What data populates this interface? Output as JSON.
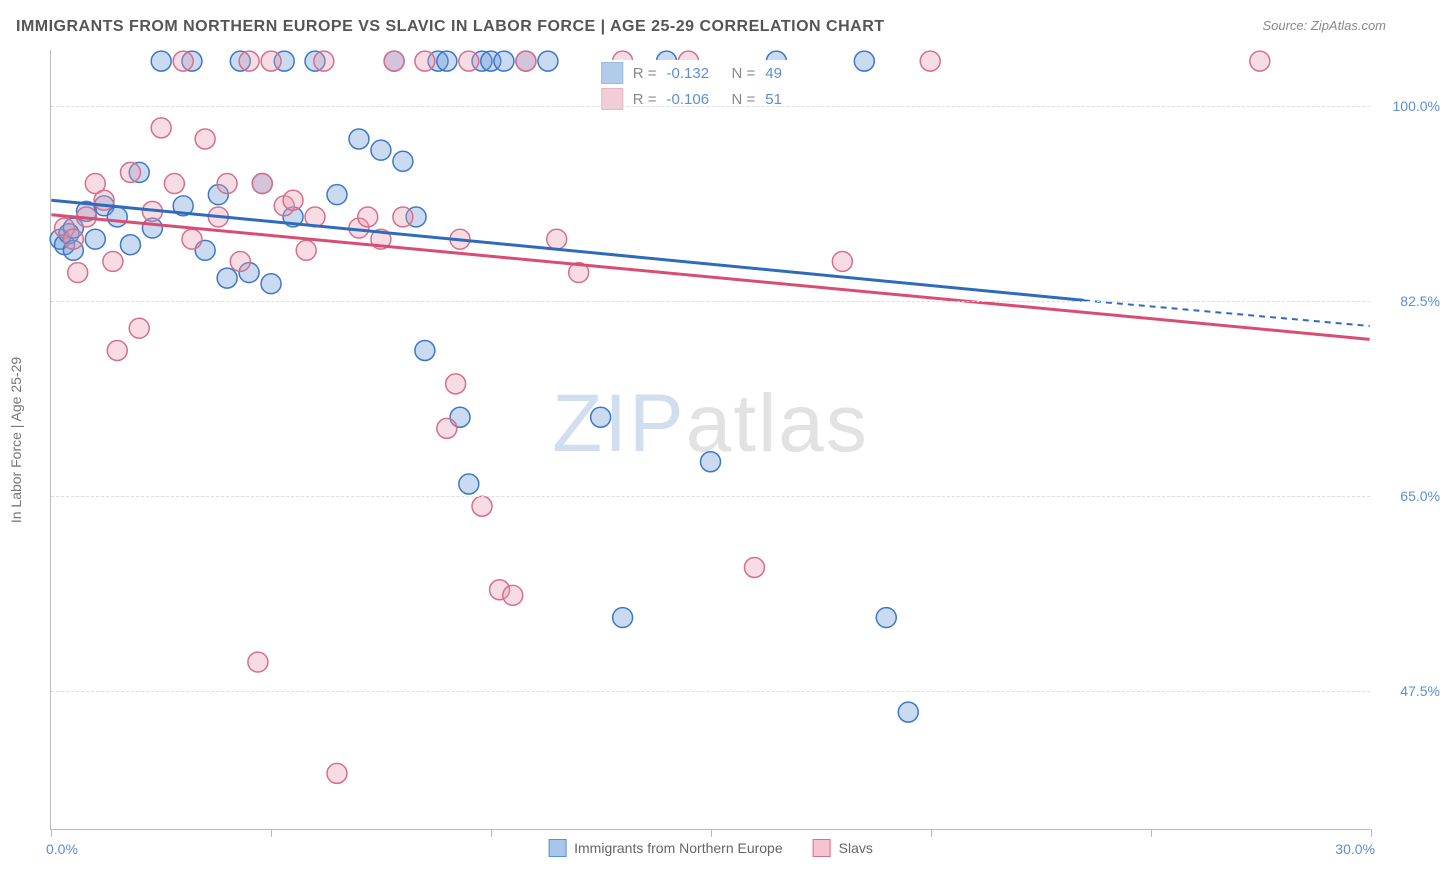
{
  "title": "IMMIGRANTS FROM NORTHERN EUROPE VS SLAVIC IN LABOR FORCE | AGE 25-29 CORRELATION CHART",
  "source": "Source: ZipAtlas.com",
  "watermark": {
    "zip": "ZIP",
    "atlas": "atlas"
  },
  "chart": {
    "type": "scatter",
    "background_color": "#ffffff",
    "grid_color": "#dddddd",
    "axis_color": "#bbbbbb",
    "tick_label_color": "#5b8fd6",
    "axis_label_color": "#777777",
    "xlim": [
      0,
      30
    ],
    "ylim": [
      35,
      105
    ],
    "xticks_minor": [
      0,
      5,
      10,
      15,
      20,
      25,
      30
    ],
    "xlabel_min": "0.0%",
    "xlabel_max": "30.0%",
    "ytick_positions": [
      47.5,
      65.0,
      82.5,
      100.0
    ],
    "ytick_labels": [
      "47.5%",
      "65.0%",
      "82.5%",
      "100.0%"
    ],
    "yaxis_label": "In Labor Force | Age 25-29",
    "marker_radius": 10,
    "marker_fill_opacity": 0.35,
    "marker_stroke_width": 1.5,
    "regression_line_width": 3,
    "series": [
      {
        "name": "Immigrants from Northern Europe",
        "color": "#6699d8",
        "color_stroke": "#3d78c7",
        "line_color": "#2e6bbd",
        "r": "-0.132",
        "n": "49",
        "regression": {
          "x1": 0,
          "y1": 91.5,
          "x2": 23.5,
          "y2": 82.5,
          "x2_ext": 30,
          "y2_ext": 80.2
        },
        "points": [
          [
            0.2,
            88.0
          ],
          [
            0.3,
            87.5
          ],
          [
            0.4,
            88.5
          ],
          [
            0.5,
            87.0
          ],
          [
            0.5,
            89.0
          ],
          [
            0.8,
            90.5
          ],
          [
            1.0,
            88.0
          ],
          [
            1.2,
            91.0
          ],
          [
            1.5,
            90.0
          ],
          [
            1.8,
            87.5
          ],
          [
            2.0,
            94.0
          ],
          [
            2.3,
            89.0
          ],
          [
            2.5,
            104.0
          ],
          [
            3.0,
            91.0
          ],
          [
            3.2,
            104.0
          ],
          [
            3.5,
            87.0
          ],
          [
            3.8,
            92.0
          ],
          [
            4.0,
            84.5
          ],
          [
            4.3,
            104.0
          ],
          [
            4.5,
            85.0
          ],
          [
            4.8,
            93.0
          ],
          [
            5.0,
            84.0
          ],
          [
            5.3,
            104.0
          ],
          [
            5.5,
            90.0
          ],
          [
            6.0,
            104.0
          ],
          [
            6.5,
            92.0
          ],
          [
            7.0,
            97.0
          ],
          [
            7.5,
            96.0
          ],
          [
            7.8,
            104.0
          ],
          [
            8.0,
            95.0
          ],
          [
            8.3,
            90.0
          ],
          [
            8.5,
            78.0
          ],
          [
            8.8,
            104.0
          ],
          [
            9.0,
            104.0
          ],
          [
            9.3,
            72.0
          ],
          [
            9.5,
            66.0
          ],
          [
            9.8,
            104.0
          ],
          [
            10.0,
            104.0
          ],
          [
            10.3,
            104.0
          ],
          [
            10.8,
            104.0
          ],
          [
            11.3,
            104.0
          ],
          [
            12.5,
            72.0
          ],
          [
            13.0,
            54.0
          ],
          [
            14.0,
            104.0
          ],
          [
            15.0,
            68.0
          ],
          [
            16.5,
            104.0
          ],
          [
            18.5,
            104.0
          ],
          [
            19.0,
            54.0
          ],
          [
            19.5,
            45.5
          ]
        ]
      },
      {
        "name": "Slavs",
        "color": "#e89ab0",
        "color_stroke": "#d66f8e",
        "line_color": "#d94d73",
        "r": "-0.106",
        "n": "51",
        "regression": {
          "x1": 0,
          "y1": 90.2,
          "x2": 30,
          "y2": 79.0,
          "x2_ext": 30,
          "y2_ext": 79.0
        },
        "points": [
          [
            0.3,
            89.0
          ],
          [
            0.5,
            88.0
          ],
          [
            0.6,
            85.0
          ],
          [
            0.8,
            90.0
          ],
          [
            1.0,
            93.0
          ],
          [
            1.2,
            91.5
          ],
          [
            1.4,
            86.0
          ],
          [
            1.5,
            78.0
          ],
          [
            1.8,
            94.0
          ],
          [
            2.0,
            80.0
          ],
          [
            2.3,
            90.5
          ],
          [
            2.5,
            98.0
          ],
          [
            2.8,
            93.0
          ],
          [
            3.0,
            104.0
          ],
          [
            3.2,
            88.0
          ],
          [
            3.5,
            97.0
          ],
          [
            3.8,
            90.0
          ],
          [
            4.0,
            93.0
          ],
          [
            4.3,
            86.0
          ],
          [
            4.5,
            104.0
          ],
          [
            4.7,
            50.0
          ],
          [
            4.8,
            93.0
          ],
          [
            5.0,
            104.0
          ],
          [
            5.3,
            91.0
          ],
          [
            5.5,
            91.5
          ],
          [
            5.8,
            87.0
          ],
          [
            6.0,
            90.0
          ],
          [
            6.2,
            104.0
          ],
          [
            6.5,
            40.0
          ],
          [
            7.0,
            89.0
          ],
          [
            7.2,
            90.0
          ],
          [
            7.5,
            88.0
          ],
          [
            7.8,
            104.0
          ],
          [
            8.0,
            90.0
          ],
          [
            8.5,
            104.0
          ],
          [
            9.0,
            71.0
          ],
          [
            9.2,
            75.0
          ],
          [
            9.3,
            88.0
          ],
          [
            9.5,
            104.0
          ],
          [
            9.8,
            64.0
          ],
          [
            10.2,
            56.5
          ],
          [
            10.5,
            56.0
          ],
          [
            10.8,
            104.0
          ],
          [
            11.5,
            88.0
          ],
          [
            12.0,
            85.0
          ],
          [
            13.0,
            104.0
          ],
          [
            14.5,
            104.0
          ],
          [
            16.0,
            58.5
          ],
          [
            18.0,
            86.0
          ],
          [
            20.0,
            104.0
          ],
          [
            27.5,
            104.0
          ]
        ]
      }
    ],
    "bottom_legend": [
      {
        "label": "Immigrants from Northern Europe",
        "fill": "#a8c5ea",
        "stroke": "#5b8fd6"
      },
      {
        "label": "Slavs",
        "fill": "#f5c4d1",
        "stroke": "#d66f8e"
      }
    ]
  }
}
